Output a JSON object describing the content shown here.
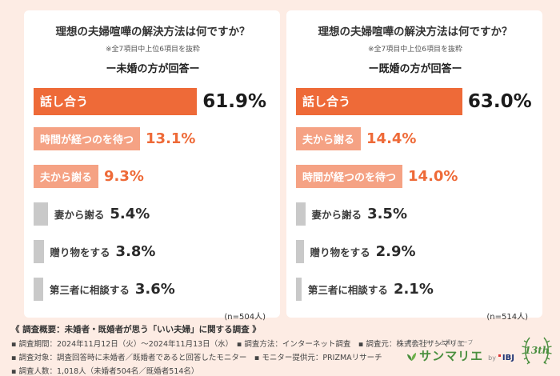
{
  "page": {
    "bg_color": "#fdece4",
    "accent_color": "#ee6a38",
    "secondary_bar_color": "#f5a284",
    "gray_bar_color": "#c9c9c9"
  },
  "chart_data": [
    {
      "type": "bar",
      "orientation": "horizontal",
      "title": "理想の夫婦喧嘩の解決方法は何ですか？",
      "note": "※全7項目中上位6項目を抜粋",
      "subtitle": "ー未婚の方が回答ー",
      "sample_label": "(n=504人)",
      "unit": "%",
      "xlim": [
        0,
        70
      ],
      "categories": [
        "話し合う",
        "時間が経つのを待つ",
        "夫から謝る",
        "妻から謝る",
        "贈り物をする",
        "第三者に相談する"
      ],
      "values": [
        61.9,
        13.1,
        9.3,
        5.4,
        3.8,
        3.6
      ],
      "value_labels": [
        "61.9%",
        "13.1%",
        "9.3%",
        "5.4%",
        "3.8%",
        "3.6%"
      ]
    },
    {
      "type": "bar",
      "orientation": "horizontal",
      "title": "理想の夫婦喧嘩の解決方法は何ですか？",
      "note": "※全7項目中上位6項目を抜粋",
      "subtitle": "ー既婚の方が回答ー",
      "sample_label": "(n=514人)",
      "unit": "%",
      "xlim": [
        0,
        70
      ],
      "categories": [
        "話し合う",
        "夫から謝る",
        "時間が経つのを待つ",
        "妻から謝る",
        "贈り物をする",
        "第三者に相談する"
      ],
      "values": [
        63.0,
        14.4,
        14.0,
        3.5,
        2.9,
        2.1
      ],
      "value_labels": [
        "63.0%",
        "14.4%",
        "14.0%",
        "3.5%",
        "2.9%",
        "2.1%"
      ]
    }
  ],
  "footer": {
    "heading": "《 調査概要：未婚者・既婚者が思う「いい夫婦」に関する調査 》",
    "lines": [
      "▪ 調査期間：2024年11月12日（火）～2024年11月13日（水）　▪ 調査方法：インターネット調査　▪ 調査元：株式会社サンマリエ",
      "▪ 調査対象：調査回答時に未婚者／既婚者であると回答したモニター　▪ モニター提供元：PRIZMAリサーチ",
      "▪ 調査人数：1,018人（未婚者504名／既婚者514名）"
    ]
  },
  "logo": {
    "group_label": "東証プライム上場グループ",
    "brand": "サンマリエ",
    "by": "by",
    "ibj": "IBJ",
    "badge_label": "13th"
  }
}
